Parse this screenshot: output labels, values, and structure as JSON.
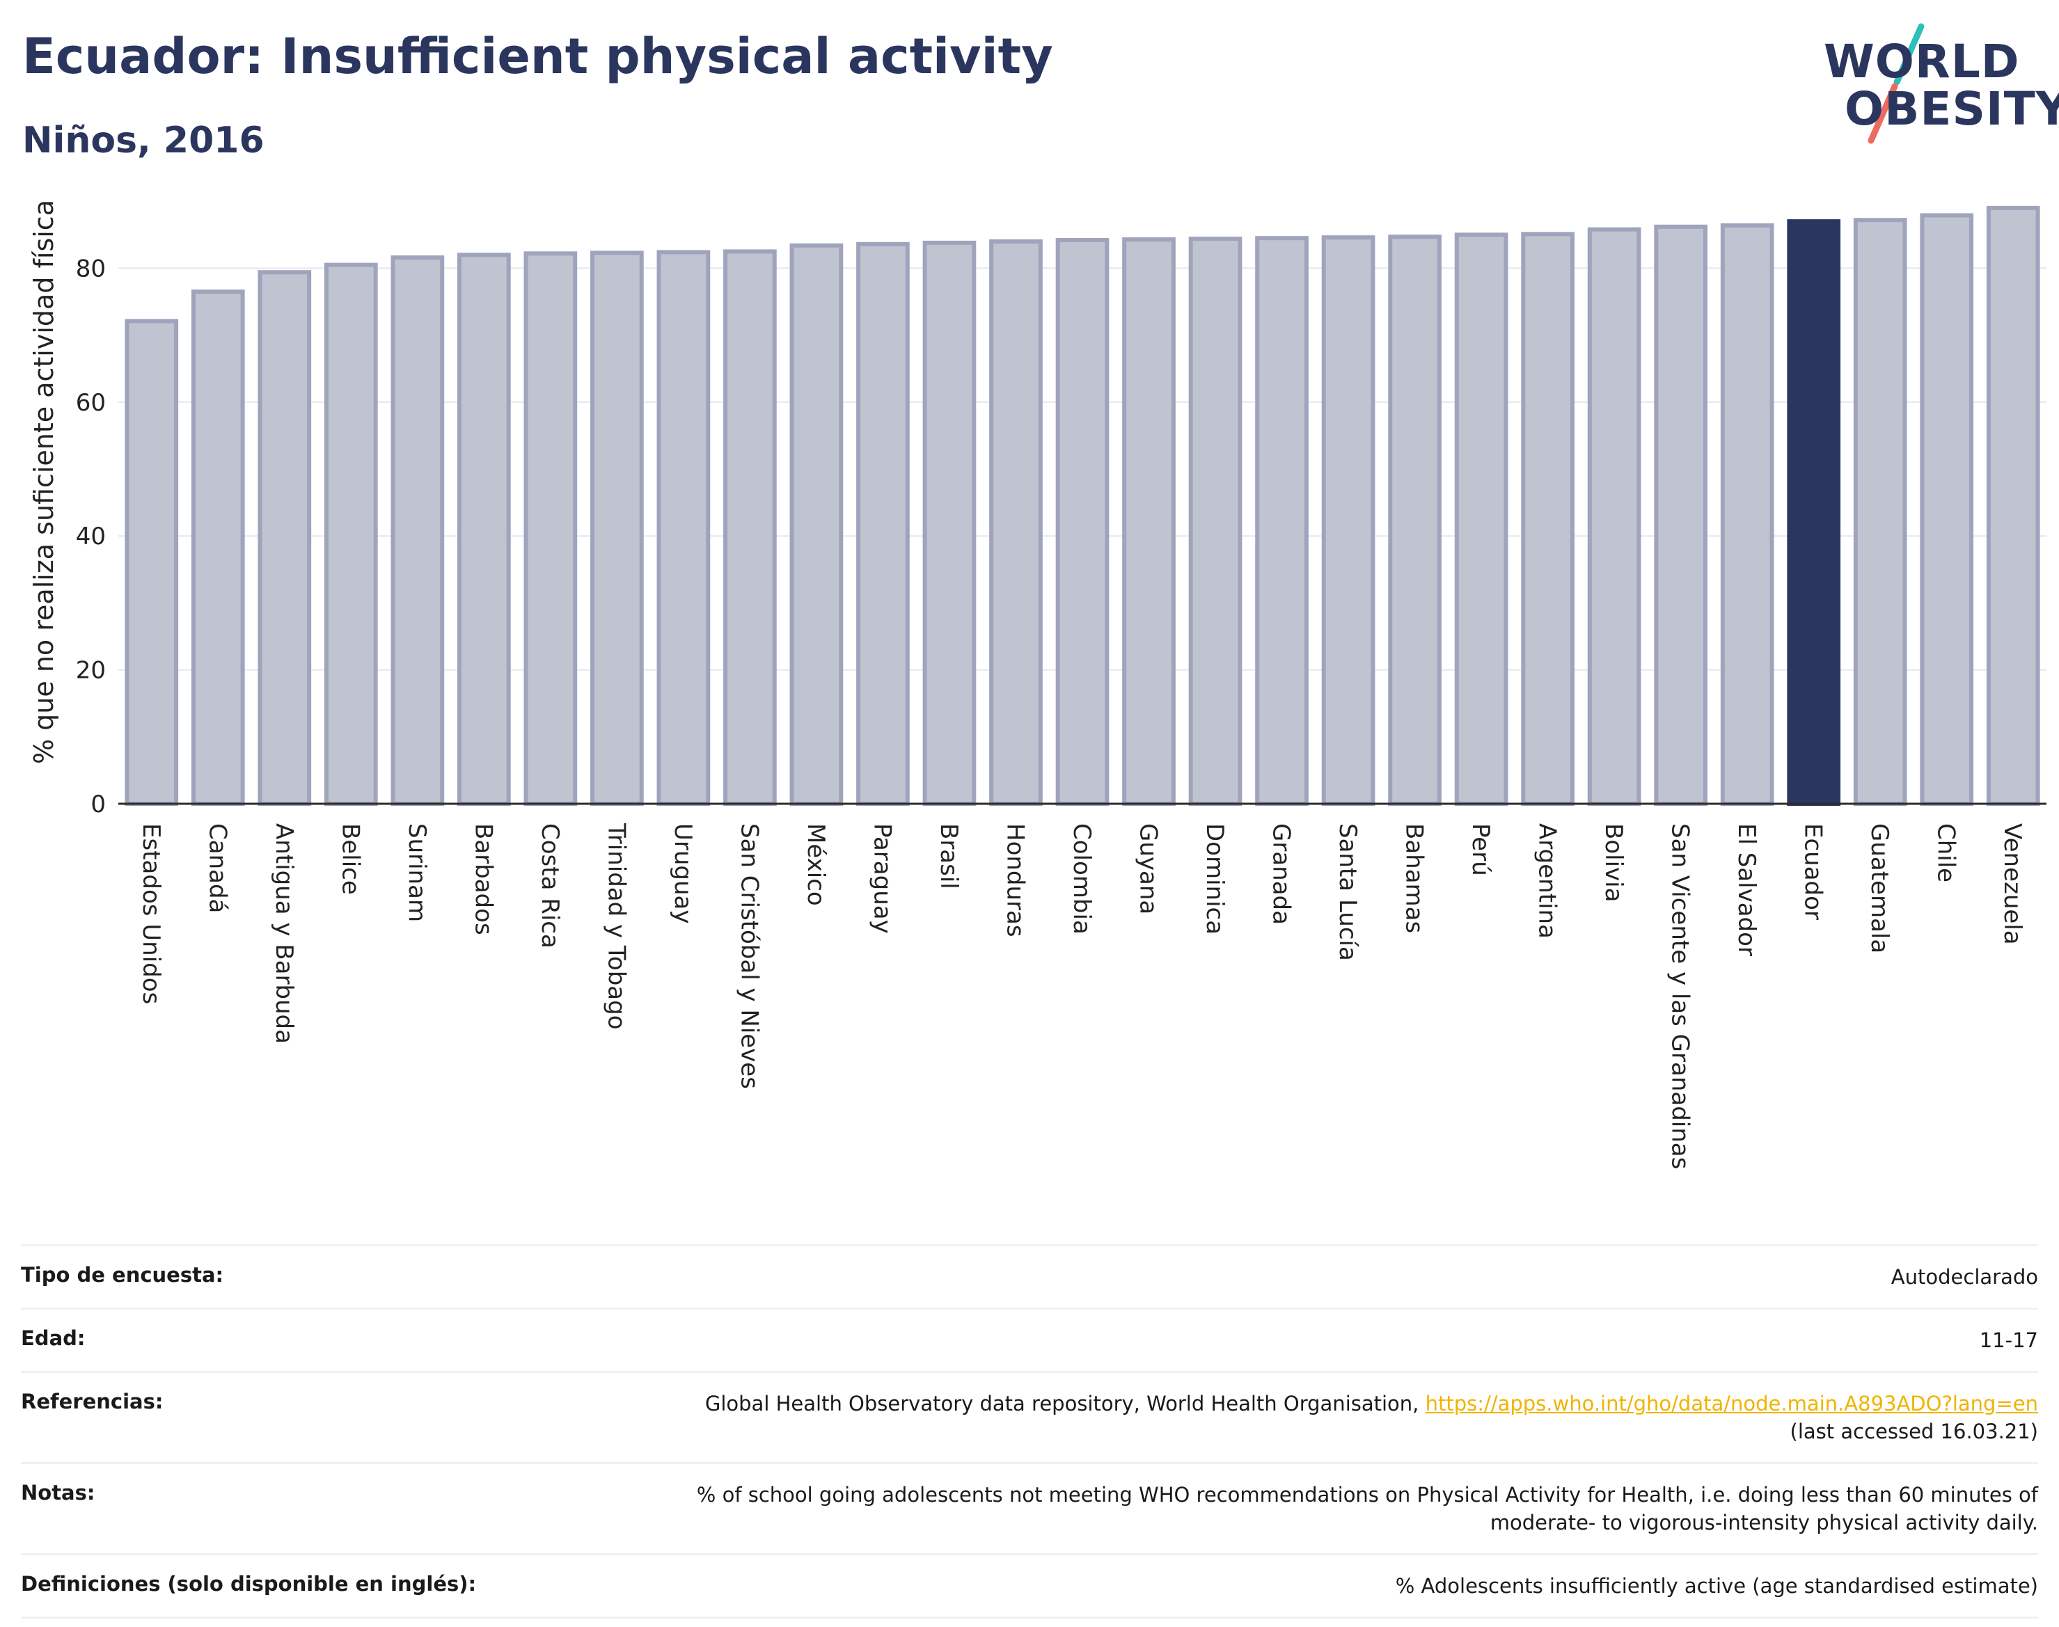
{
  "header": {
    "title": "Ecuador: Insufficient physical activity",
    "subtitle": "Niños, 2016",
    "logo_line1": "WORLD",
    "logo_line2": "OBESITY"
  },
  "chart_data": {
    "type": "bar",
    "ylabel": "% que no realiza suficiente actividad física",
    "xlabel": "",
    "ylim": [
      0,
      92
    ],
    "yticks": [
      0,
      20,
      40,
      60,
      80
    ],
    "grid": true,
    "highlight": "Ecuador",
    "categories": [
      "Estados Unidos",
      "Canadá",
      "Antigua y Barbuda",
      "Belice",
      "Surinam",
      "Barbados",
      "Costa Rica",
      "Trinidad y Tobago",
      "Uruguay",
      "San Cristóbal y Nieves",
      "México",
      "Paraguay",
      "Brasil",
      "Honduras",
      "Colombia",
      "Guyana",
      "Dominica",
      "Granada",
      "Santa Lucía",
      "Bahamas",
      "Perú",
      "Argentina",
      "Bolivia",
      "San Vicente y las Granadinas",
      "El Salvador",
      "Ecuador",
      "Guatemala",
      "Chile",
      "Venezuela"
    ],
    "values": [
      72.1,
      76.5,
      79.4,
      80.5,
      81.6,
      82.0,
      82.2,
      82.3,
      82.4,
      82.5,
      83.4,
      83.6,
      83.8,
      84.0,
      84.2,
      84.3,
      84.4,
      84.5,
      84.6,
      84.7,
      85.0,
      85.1,
      85.8,
      86.2,
      86.4,
      87.0,
      87.2,
      87.9,
      89.0
    ]
  },
  "colors": {
    "bar": "#c0c3d0",
    "bar_edge": "#9fa4bc",
    "highlight": "#2b365f",
    "title": "#2b365f",
    "logo_accent_teal": "#2dbfb8",
    "logo_accent_coral": "#ec6b5e",
    "link": "#f0b400"
  },
  "info": {
    "survey_label": "Tipo de encuesta:",
    "survey_value": "Autodeclarado",
    "age_label": "Edad:",
    "age_value": "11-17",
    "refs_label": "Referencias:",
    "refs_text": "Global Health Observatory data repository, World Health Organisation, ",
    "refs_link": "https://apps.who.int/gho/data/node.main.A893ADO?lang=en",
    "refs_accessed": "(last accessed 16.03.21)",
    "notes_label": "Notas:",
    "notes_line1": "% of school going adolescents not meeting WHO recommendations on Physical Activity for Health, i.e. doing less than 60 minutes of",
    "notes_line2": "moderate- to vigorous-intensity physical activity daily.",
    "defs_label": "Definiciones (solo disponible en inglés):",
    "defs_value": "% Adolescents insufficiently active (age standardised estimate)"
  }
}
